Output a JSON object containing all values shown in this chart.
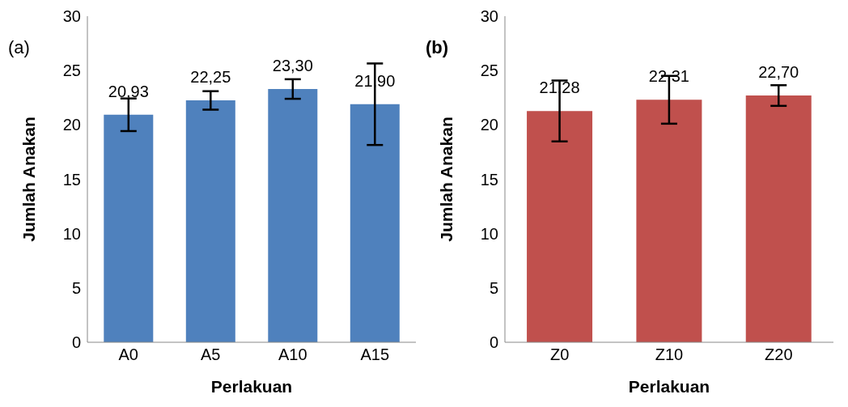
{
  "chart_data": [
    {
      "type": "bar",
      "annotations": [
        "(a)"
      ],
      "xlabel": "Perlakuan",
      "ylabel": "Jumlah Anakan",
      "categories": [
        "A0",
        "A5",
        "A10",
        "A15"
      ],
      "series": [
        {
          "color": "#4f81bd",
          "values": [
            20.93,
            22.25,
            23.3,
            21.9
          ],
          "errors": [
            1.5,
            0.85,
            0.9,
            3.75
          ],
          "value_labels": [
            "20,93",
            "22,25",
            "23,30",
            "21,90"
          ]
        }
      ],
      "ylim": [
        0,
        30
      ],
      "yticks": [
        0,
        5,
        10,
        15,
        20,
        25,
        30
      ],
      "grid": false,
      "legend": false
    },
    {
      "type": "bar",
      "annotations": [
        "(b)"
      ],
      "xlabel": "Perlakuan",
      "ylabel": "Jumlah Anakan",
      "categories": [
        "Z0",
        "Z10",
        "Z20"
      ],
      "series": [
        {
          "color": "#c0504d",
          "values": [
            21.28,
            22.31,
            22.7
          ],
          "errors": [
            2.8,
            2.2,
            0.95
          ],
          "value_labels": [
            "21,28",
            "22,31",
            "22,70"
          ]
        }
      ],
      "ylim": [
        0,
        30
      ],
      "yticks": [
        0,
        5,
        10,
        15,
        20,
        25,
        30
      ],
      "grid": false,
      "legend": false
    }
  ]
}
